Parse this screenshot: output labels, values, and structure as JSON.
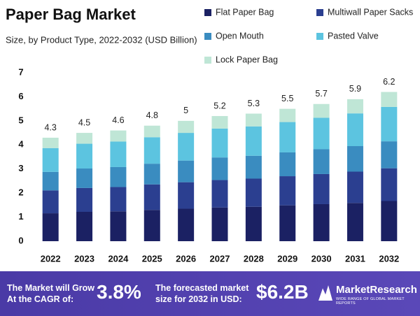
{
  "chart_data": {
    "type": "stacked-bar",
    "title": "Paper Bag Market",
    "subtitle": "Size, by Product Type, 2022-2032 (USD Billion)",
    "categories": [
      "2022",
      "2023",
      "2024",
      "2025",
      "2026",
      "2027",
      "2028",
      "2029",
      "2030",
      "2031",
      "2032"
    ],
    "series": [
      {
        "name": "Flat Paper Bag",
        "color": "#1b2163",
        "values": [
          1.16,
          1.22,
          1.24,
          1.3,
          1.35,
          1.4,
          1.43,
          1.49,
          1.54,
          1.59,
          1.67
        ]
      },
      {
        "name": "Multiwall Paper Sacks",
        "color": "#2b3f90",
        "values": [
          0.95,
          0.99,
          1.01,
          1.06,
          1.1,
          1.14,
          1.17,
          1.21,
          1.25,
          1.3,
          1.36
        ]
      },
      {
        "name": "Open Mouth",
        "color": "#3a8cc0",
        "values": [
          0.77,
          0.81,
          0.83,
          0.86,
          0.9,
          0.94,
          0.95,
          0.99,
          1.03,
          1.06,
          1.12
        ]
      },
      {
        "name": "Pasted Valve",
        "color": "#5cc4e0",
        "values": [
          0.99,
          1.03,
          1.06,
          1.1,
          1.15,
          1.2,
          1.22,
          1.26,
          1.31,
          1.36,
          1.43
        ]
      },
      {
        "name": "Lock Paper Bag",
        "color": "#bfe6d6",
        "values": [
          0.43,
          0.45,
          0.46,
          0.48,
          0.5,
          0.52,
          0.53,
          0.55,
          0.57,
          0.59,
          0.62
        ]
      }
    ],
    "totals": [
      4.3,
      4.5,
      4.6,
      4.8,
      5.0,
      5.2,
      5.3,
      5.5,
      5.7,
      5.9,
      6.2
    ],
    "ylim": [
      0,
      7
    ],
    "yticks": [
      0,
      1,
      2,
      3,
      4,
      5,
      6,
      7
    ],
    "grid": false,
    "legend": "top-right"
  },
  "footer": {
    "cagr_text": "The Market will Grow At the CAGR of:",
    "cagr": "3.8%",
    "forecast_text": "The forecasted market size for 2032 in USD:",
    "forecast": "$6.2B",
    "brand": "MarketResearch",
    "tagline": "WIDE RANGE OF GLOBAL MARKET REPORTS"
  }
}
